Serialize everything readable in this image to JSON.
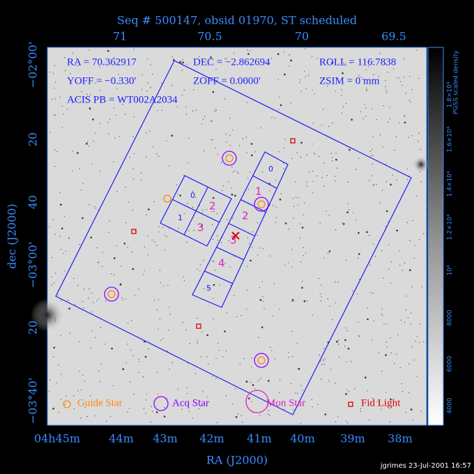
{
  "title": "Seq # 500147, obsid 01970, ST scheduled",
  "top_axis": [
    "71",
    "70.5",
    "70",
    "69.5"
  ],
  "info": [
    "RA = 70.362917",
    "DEC = −2.862694",
    "ROLL = 116.7838",
    "YOFF = −0.330'",
    "ZOFF = 0.0000'",
    "ZSIM = 0 mm",
    "ACIS PB = WT002A2034"
  ],
  "y_axis": {
    "label": "dec (J2000)",
    "ticks": [
      "−02°00'",
      "20",
      "40",
      "−03°00'",
      "20",
      "−03°40'"
    ]
  },
  "x_axis": {
    "label": "RA (J2000)",
    "ticks": [
      "04h45m",
      "44m",
      "43m",
      "42m",
      "41m",
      "40m",
      "39m",
      "38m"
    ]
  },
  "colorbar": {
    "label": "PGSS scaled density",
    "ticks": [
      "4000",
      "6000",
      "8000",
      "10⁴",
      "1.2×10⁴",
      "1.4×10⁴",
      "1.6×10⁴",
      "1.8×10⁴"
    ]
  },
  "acis_i_chips": [
    "0",
    "1",
    "2",
    "3"
  ],
  "acis_s_chips": [
    "0",
    "1",
    "2",
    "3",
    "4",
    "5"
  ],
  "legend": [
    "Guide Star",
    "Acq Star",
    "Mon Star",
    "Fid Light"
  ],
  "footer": "jgrimes 23-Jul-2001 16:57"
}
